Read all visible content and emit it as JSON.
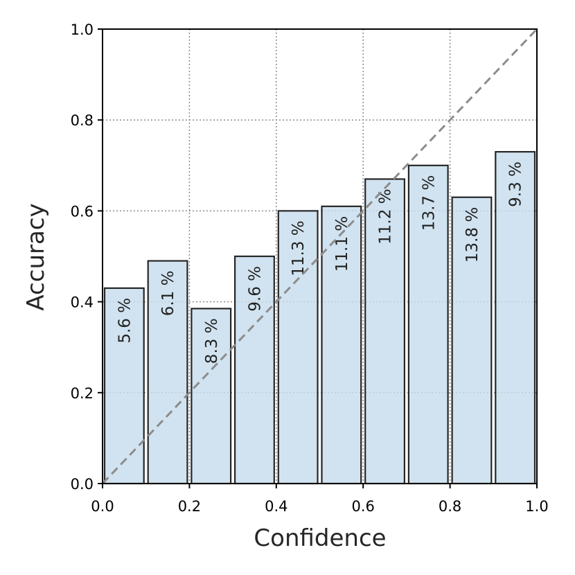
{
  "chart_data": {
    "type": "bar",
    "xlabel": "Confidence",
    "ylabel": "Accuracy",
    "xlim": [
      0.0,
      1.0
    ],
    "ylim": [
      0.0,
      1.0
    ],
    "xticks": [
      "0.0",
      "0.2",
      "0.4",
      "0.6",
      "0.8",
      "1.0"
    ],
    "yticks": [
      "0.0",
      "0.2",
      "0.4",
      "0.6",
      "0.8",
      "1.0"
    ],
    "grid": true,
    "bins": [
      {
        "x_start": 0.0,
        "x_end": 0.1,
        "value": 0.43,
        "label": "5.6 %"
      },
      {
        "x_start": 0.1,
        "x_end": 0.2,
        "value": 0.49,
        "label": "6.1 %"
      },
      {
        "x_start": 0.2,
        "x_end": 0.3,
        "value": 0.385,
        "label": "8.3 %"
      },
      {
        "x_start": 0.3,
        "x_end": 0.4,
        "value": 0.5,
        "label": "9.6 %"
      },
      {
        "x_start": 0.4,
        "x_end": 0.5,
        "value": 0.6,
        "label": "11.3 %"
      },
      {
        "x_start": 0.5,
        "x_end": 0.6,
        "value": 0.61,
        "label": "11.1 %"
      },
      {
        "x_start": 0.6,
        "x_end": 0.7,
        "value": 0.67,
        "label": "11.2 %"
      },
      {
        "x_start": 0.7,
        "x_end": 0.8,
        "value": 0.7,
        "label": "13.7 %"
      },
      {
        "x_start": 0.8,
        "x_end": 0.9,
        "value": 0.63,
        "label": "13.8 %"
      },
      {
        "x_start": 0.9,
        "x_end": 1.0,
        "value": 0.73,
        "label": "9.3 %"
      }
    ],
    "diagonal": {
      "from": [
        0.0,
        0.0
      ],
      "to": [
        1.0,
        1.0
      ],
      "style": "dashed",
      "color": "#8c8c8c"
    },
    "colors": {
      "bar_fill": "#c6dcec",
      "bar_edge": "#262626",
      "grid": "#8a8a8a"
    }
  }
}
